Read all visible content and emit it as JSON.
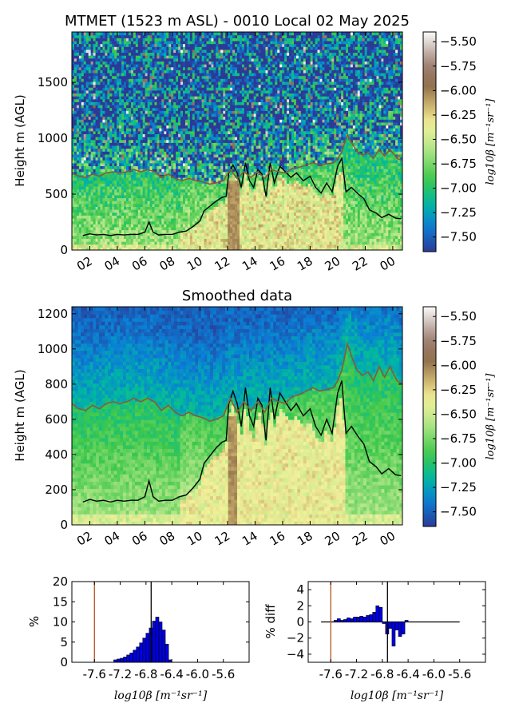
{
  "chart_data": [
    {
      "type": "heatmap",
      "title": "MTMET (1523 m ASL) - 0010 Local 02 May 2025",
      "ylabel": "Height m (AGL)",
      "x_tick_labels": [
        "02",
        "04",
        "06",
        "08",
        "10",
        "12",
        "14",
        "16",
        "18",
        "20",
        "22",
        "00"
      ],
      "x_ticks_hours": [
        2,
        4,
        6,
        8,
        10,
        12,
        14,
        16,
        18,
        20,
        22,
        24
      ],
      "xlim_hours": [
        0.7,
        24.7
      ],
      "y_ticks": [
        0,
        500,
        1000,
        1500
      ],
      "ylim": [
        0,
        1950
      ],
      "colorbar": {
        "label": "log10β [m⁻¹sr⁻¹]",
        "ticks": [
          -5.5,
          -5.75,
          -6.0,
          -6.25,
          -6.5,
          -6.75,
          -7.0,
          -7.25,
          -7.5
        ],
        "tick_labels": [
          "−5.50",
          "−5.75",
          "−6.00",
          "−6.25",
          "−6.50",
          "−6.75",
          "−7.00",
          "−7.25",
          "−7.50"
        ],
        "range": [
          -7.65,
          -5.4
        ]
      },
      "colormap_stops": [
        {
          "v": 0.0,
          "c": "#2b3a96"
        },
        {
          "v": 0.12,
          "c": "#0a7fd6"
        },
        {
          "v": 0.22,
          "c": "#00b9a0"
        },
        {
          "v": 0.33,
          "c": "#3ec84a"
        },
        {
          "v": 0.47,
          "c": "#b4e68a"
        },
        {
          "v": 0.58,
          "c": "#f3f19a"
        },
        {
          "v": 0.67,
          "c": "#c9b06b"
        },
        {
          "v": 0.76,
          "c": "#8c6a4a"
        },
        {
          "v": 0.86,
          "c": "#a4877c"
        },
        {
          "v": 1.0,
          "c": "#fbfbfb"
        }
      ],
      "lines": [
        {
          "color": "#000000",
          "points": [
            [
              1.5,
              130
            ],
            [
              2.0,
              145
            ],
            [
              2.5,
              135
            ],
            [
              3.0,
              140
            ],
            [
              3.5,
              130
            ],
            [
              4.0,
              140
            ],
            [
              4.5,
              135
            ],
            [
              5.0,
              140
            ],
            [
              5.5,
              140
            ],
            [
              6.0,
              160
            ],
            [
              6.3,
              250
            ],
            [
              6.6,
              160
            ],
            [
              7.0,
              135
            ],
            [
              7.5,
              140
            ],
            [
              8.0,
              140
            ],
            [
              8.5,
              160
            ],
            [
              9.0,
              170
            ],
            [
              9.5,
              210
            ],
            [
              10.0,
              260
            ],
            [
              10.3,
              350
            ],
            [
              10.8,
              400
            ],
            [
              11.2,
              440
            ],
            [
              11.6,
              470
            ],
            [
              11.9,
              480
            ],
            [
              12.1,
              690
            ],
            [
              12.4,
              760
            ],
            [
              12.7,
              690
            ],
            [
              13.0,
              560
            ],
            [
              13.3,
              780
            ],
            [
              13.6,
              620
            ],
            [
              13.9,
              560
            ],
            [
              14.2,
              720
            ],
            [
              14.5,
              680
            ],
            [
              14.8,
              480
            ],
            [
              15.1,
              780
            ],
            [
              15.4,
              600
            ],
            [
              15.8,
              750
            ],
            [
              16.2,
              700
            ],
            [
              16.6,
              650
            ],
            [
              17.0,
              690
            ],
            [
              17.5,
              620
            ],
            [
              18.0,
              660
            ],
            [
              18.4,
              560
            ],
            [
              18.8,
              510
            ],
            [
              19.2,
              600
            ],
            [
              19.6,
              520
            ],
            [
              20.0,
              750
            ],
            [
              20.3,
              820
            ],
            [
              20.6,
              520
            ],
            [
              21.0,
              560
            ],
            [
              21.5,
              500
            ],
            [
              21.9,
              460
            ],
            [
              22.3,
              360
            ],
            [
              22.8,
              330
            ],
            [
              23.2,
              290
            ],
            [
              23.7,
              320
            ],
            [
              24.2,
              285
            ],
            [
              24.6,
              280
            ]
          ]
        },
        {
          "color": "#8a5a35",
          "points": [
            [
              0.7,
              690
            ],
            [
              1.2,
              660
            ],
            [
              1.7,
              650
            ],
            [
              2.2,
              680
            ],
            [
              2.7,
              660
            ],
            [
              3.2,
              690
            ],
            [
              3.7,
              700
            ],
            [
              4.2,
              690
            ],
            [
              4.7,
              700
            ],
            [
              5.2,
              720
            ],
            [
              5.7,
              700
            ],
            [
              6.2,
              720
            ],
            [
              6.7,
              700
            ],
            [
              7.2,
              650
            ],
            [
              7.7,
              680
            ],
            [
              8.2,
              640
            ],
            [
              8.7,
              620
            ],
            [
              9.2,
              640
            ],
            [
              9.7,
              620
            ],
            [
              10.2,
              610
            ],
            [
              10.7,
              590
            ],
            [
              11.2,
              600
            ],
            [
              11.7,
              620
            ],
            [
              12.2,
              720
            ],
            [
              12.7,
              640
            ],
            [
              13.2,
              700
            ],
            [
              13.7,
              650
            ],
            [
              14.2,
              700
            ],
            [
              14.7,
              640
            ],
            [
              15.2,
              720
            ],
            [
              15.7,
              700
            ],
            [
              16.2,
              690
            ],
            [
              16.7,
              730
            ],
            [
              17.2,
              740
            ],
            [
              17.7,
              760
            ],
            [
              18.2,
              780
            ],
            [
              18.7,
              760
            ],
            [
              19.2,
              770
            ],
            [
              19.7,
              780
            ],
            [
              20.0,
              820
            ],
            [
              20.3,
              880
            ],
            [
              20.7,
              1030
            ],
            [
              21.0,
              960
            ],
            [
              21.4,
              880
            ],
            [
              21.8,
              850
            ],
            [
              22.2,
              870
            ],
            [
              22.6,
              820
            ],
            [
              23.0,
              900
            ],
            [
              23.4,
              840
            ],
            [
              23.8,
              900
            ],
            [
              24.3,
              820
            ],
            [
              24.7,
              800
            ]
          ]
        }
      ]
    },
    {
      "type": "heatmap",
      "title": "Smoothed data",
      "ylabel": "Height m (AGL)",
      "x_tick_labels": [
        "02",
        "04",
        "06",
        "08",
        "10",
        "12",
        "14",
        "16",
        "18",
        "20",
        "22",
        "00"
      ],
      "x_ticks_hours": [
        2,
        4,
        6,
        8,
        10,
        12,
        14,
        16,
        18,
        20,
        22,
        24
      ],
      "xlim_hours": [
        0.7,
        24.7
      ],
      "y_ticks": [
        0,
        200,
        400,
        600,
        800,
        1000,
        1200
      ],
      "ylim": [
        0,
        1240
      ],
      "colorbar": {
        "label": "log10β [m⁻¹sr⁻¹]",
        "ticks": [
          -5.5,
          -5.75,
          -6.0,
          -6.25,
          -6.5,
          -6.75,
          -7.0,
          -7.25,
          -7.5
        ],
        "tick_labels": [
          "−5.50",
          "−5.75",
          "−6.00",
          "−6.25",
          "−6.50",
          "−6.75",
          "−7.00",
          "−7.25",
          "−7.50"
        ],
        "range": [
          -7.65,
          -5.4
        ]
      }
    },
    {
      "type": "bar",
      "ylabel": "%",
      "xlabel": "log10β [m⁻¹sr⁻¹]",
      "x_tick_labels": [
        "-7.6",
        "-7.2",
        "-6.8",
        "-6.4",
        "-6.0",
        "-5.6"
      ],
      "x_ticks": [
        -7.6,
        -7.2,
        -6.8,
        -6.4,
        -6.0,
        -5.6
      ],
      "xlim": [
        -7.95,
        -5.2
      ],
      "ylim": [
        0,
        20
      ],
      "y_ticks": [
        0,
        5,
        10,
        15,
        20
      ],
      "bin_width": 0.05,
      "bins_start": [
        -7.3,
        -7.25,
        -7.2,
        -7.15,
        -7.1,
        -7.05,
        -7.0,
        -6.95,
        -6.9,
        -6.85,
        -6.8,
        -6.75,
        -6.7,
        -6.65,
        -6.6,
        -6.55,
        -6.5,
        -6.45
      ],
      "values": [
        0.6,
        0.8,
        1.0,
        1.3,
        1.8,
        2.3,
        3.0,
        3.8,
        4.8,
        6.0,
        7.2,
        8.5,
        10.2,
        11.2,
        10.0,
        8.0,
        4.5,
        0.6
      ],
      "vlines": [
        {
          "x": -7.6,
          "color": "#b5541e"
        },
        {
          "x": -6.72,
          "color": "#000000"
        }
      ]
    },
    {
      "type": "bar",
      "ylabel": "% diff",
      "xlabel": "log10β [m⁻¹sr⁻¹]",
      "x_tick_labels": [
        "-7.6",
        "-7.2",
        "-6.8",
        "-6.4",
        "-6.0",
        "-5.6"
      ],
      "x_ticks": [
        -7.6,
        -7.2,
        -6.8,
        -6.4,
        -6.0,
        -5.6
      ],
      "xlim": [
        -7.95,
        -5.2
      ],
      "ylim": [
        -5,
        5
      ],
      "y_ticks": [
        -4,
        -2,
        0,
        2,
        4
      ],
      "bin_width": 0.05,
      "bins_start": [
        -7.55,
        -7.5,
        -7.45,
        -7.4,
        -7.35,
        -7.3,
        -7.25,
        -7.2,
        -7.15,
        -7.1,
        -7.05,
        -7.0,
        -6.95,
        -6.9,
        -6.85,
        -6.8,
        -6.75,
        -6.7,
        -6.65,
        -6.6,
        -6.55,
        -6.5,
        -6.45
      ],
      "values": [
        0.2,
        0.4,
        0.2,
        0.3,
        0.5,
        0.4,
        0.6,
        0.6,
        0.7,
        0.6,
        0.8,
        0.9,
        1.2,
        2.0,
        1.8,
        -0.2,
        -1.5,
        -0.8,
        -3.0,
        -1.0,
        -1.8,
        -1.5,
        0.2
      ],
      "baseline_xlim": [
        -7.75,
        -5.6
      ],
      "vlines": [
        {
          "x": -7.6,
          "color": "#b5541e"
        },
        {
          "x": -6.72,
          "color": "#000000"
        }
      ]
    }
  ]
}
